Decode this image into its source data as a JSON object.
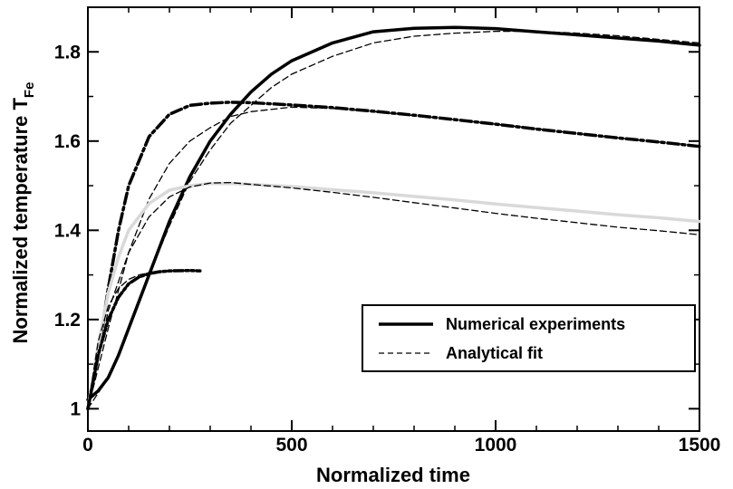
{
  "chart_data": {
    "type": "line",
    "title": "",
    "xlabel": "Normalized time",
    "ylabel": "Normalized temperature T",
    "ylabel_subscript": "Fe",
    "xlim": [
      0,
      1500
    ],
    "ylim": [
      0.95,
      1.9
    ],
    "xticks": [
      0,
      500,
      1000,
      1500
    ],
    "xtick_labels": [
      "0",
      "500",
      "1000",
      "1500"
    ],
    "yticks": [
      1.0,
      1.2,
      1.4,
      1.6,
      1.8
    ],
    "ytick_labels": [
      "1",
      "1.2",
      "1.4",
      "1.6",
      "1.8"
    ],
    "grid": false,
    "legend": {
      "position": "bottom-right",
      "entries": [
        {
          "label": "Numerical experiments",
          "style": "solid"
        },
        {
          "label": "Analytical fit",
          "style": "dashed"
        }
      ]
    },
    "series": [
      {
        "style": "solid",
        "color": "#000000",
        "x": [
          0,
          25,
          50,
          75,
          100,
          150,
          200,
          250,
          300,
          350,
          400,
          450,
          500,
          600,
          700,
          800,
          900,
          1000,
          1100,
          1200,
          1300,
          1400,
          1500
        ],
        "y": [
          1.02,
          1.04,
          1.07,
          1.12,
          1.18,
          1.3,
          1.42,
          1.52,
          1.6,
          1.66,
          1.71,
          1.75,
          1.78,
          1.82,
          1.845,
          1.853,
          1.855,
          1.852,
          1.845,
          1.838,
          1.831,
          1.824,
          1.815
        ]
      },
      {
        "style": "dashed",
        "color": "#000000",
        "x": [
          0,
          50,
          100,
          150,
          200,
          250,
          300,
          350,
          400,
          450,
          500,
          600,
          700,
          800,
          900,
          1000,
          1100,
          1200,
          1300,
          1400,
          1500
        ],
        "y": [
          1.0,
          1.07,
          1.18,
          1.3,
          1.41,
          1.51,
          1.58,
          1.64,
          1.68,
          1.72,
          1.75,
          1.79,
          1.82,
          1.835,
          1.842,
          1.846,
          1.846,
          1.842,
          1.836,
          1.828,
          1.82
        ]
      },
      {
        "style": "dash-dot",
        "color": "#000000",
        "x": [
          0,
          25,
          50,
          75,
          100,
          150,
          200,
          250,
          300,
          350,
          400,
          500,
          600,
          700,
          800,
          900,
          1000,
          1100,
          1200,
          1300,
          1400,
          1500
        ],
        "y": [
          1.0,
          1.12,
          1.27,
          1.4,
          1.5,
          1.61,
          1.66,
          1.68,
          1.685,
          1.687,
          1.686,
          1.681,
          1.675,
          1.667,
          1.658,
          1.648,
          1.638,
          1.627,
          1.617,
          1.607,
          1.598,
          1.588
        ]
      },
      {
        "style": "dashed",
        "color": "#000000",
        "x": [
          0,
          50,
          100,
          150,
          200,
          250,
          300,
          350,
          400,
          500,
          600,
          700,
          800,
          900,
          1000,
          1100,
          1200,
          1300,
          1400,
          1500
        ],
        "y": [
          1.0,
          1.18,
          1.35,
          1.47,
          1.55,
          1.6,
          1.63,
          1.655,
          1.666,
          1.676,
          1.673,
          1.666,
          1.657,
          1.648,
          1.638,
          1.628,
          1.617,
          1.607,
          1.598,
          1.59
        ]
      },
      {
        "style": "solid",
        "color": "#d9d9d9",
        "x": [
          0,
          25,
          50,
          75,
          100,
          150,
          200,
          250,
          300,
          350,
          400,
          500,
          600,
          700,
          800,
          900,
          1000,
          1100,
          1200,
          1300,
          1400,
          1500
        ],
        "y": [
          1.0,
          1.14,
          1.26,
          1.34,
          1.4,
          1.46,
          1.49,
          1.5,
          1.505,
          1.505,
          1.503,
          1.498,
          1.491,
          1.484,
          1.476,
          1.468,
          1.459,
          1.451,
          1.443,
          1.435,
          1.428,
          1.42
        ]
      },
      {
        "style": "dashed",
        "color": "#000000",
        "x": [
          0,
          50,
          100,
          150,
          200,
          250,
          300,
          350,
          400,
          500,
          600,
          700,
          800,
          900,
          1000,
          1100,
          1200,
          1300,
          1400,
          1500
        ],
        "y": [
          1.0,
          1.22,
          1.35,
          1.43,
          1.475,
          1.497,
          1.506,
          1.507,
          1.503,
          1.495,
          1.485,
          1.474,
          1.462,
          1.45,
          1.438,
          1.427,
          1.417,
          1.407,
          1.399,
          1.39
        ]
      },
      {
        "style": "dash-dot-dot",
        "color": "#000000",
        "x": [
          0,
          25,
          50,
          75,
          100,
          125,
          150,
          175,
          200,
          250,
          275
        ],
        "y": [
          1.0,
          1.12,
          1.2,
          1.25,
          1.28,
          1.295,
          1.303,
          1.307,
          1.309,
          1.31,
          1.309
        ]
      },
      {
        "style": "dashed",
        "color": "#000000",
        "x": [
          0,
          25,
          50,
          75,
          100,
          125,
          150,
          175,
          200,
          250,
          275
        ],
        "y": [
          1.0,
          1.15,
          1.23,
          1.27,
          1.29,
          1.3,
          1.305,
          1.308,
          1.309,
          1.31,
          1.31
        ]
      }
    ]
  }
}
